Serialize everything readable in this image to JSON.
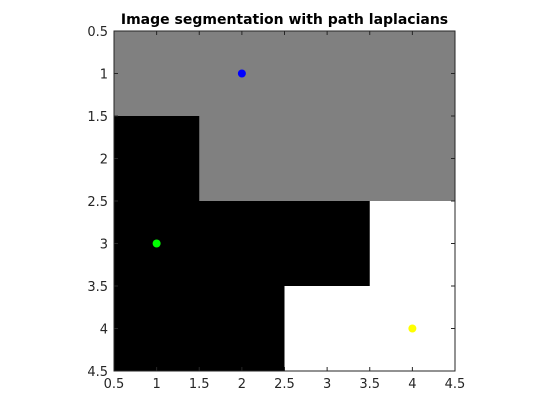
{
  "chart_data": {
    "type": "heatmap",
    "title": "Image segmentation with path laplacians",
    "xlabel": "",
    "ylabel": "",
    "xlim": [
      0.5,
      4.5
    ],
    "ylim": [
      0.5,
      4.5
    ],
    "y_direction": "reversed",
    "grid": false,
    "xticks": [
      "0.5",
      "1",
      "1.5",
      "2",
      "2.5",
      "3",
      "3.5",
      "4",
      "4.5"
    ],
    "yticks": [
      "0.5",
      "1",
      "1.5",
      "2",
      "2.5",
      "3",
      "3.5",
      "4",
      "4.5"
    ],
    "grid_values": [
      [
        0.5,
        0.5,
        0.5,
        0.5
      ],
      [
        0,
        0.5,
        0.5,
        0.5
      ],
      [
        0,
        0,
        0,
        1
      ],
      [
        0,
        0,
        1,
        1
      ]
    ],
    "colormap": {
      "0": "#000000",
      "0.5": "#808080",
      "1": "#ffffff"
    },
    "points": [
      {
        "x": 2,
        "y": 1,
        "color": "#0000ff"
      },
      {
        "x": 1,
        "y": 3,
        "color": "#00ff00"
      },
      {
        "x": 4,
        "y": 4,
        "color": "#ffff00"
      }
    ]
  }
}
